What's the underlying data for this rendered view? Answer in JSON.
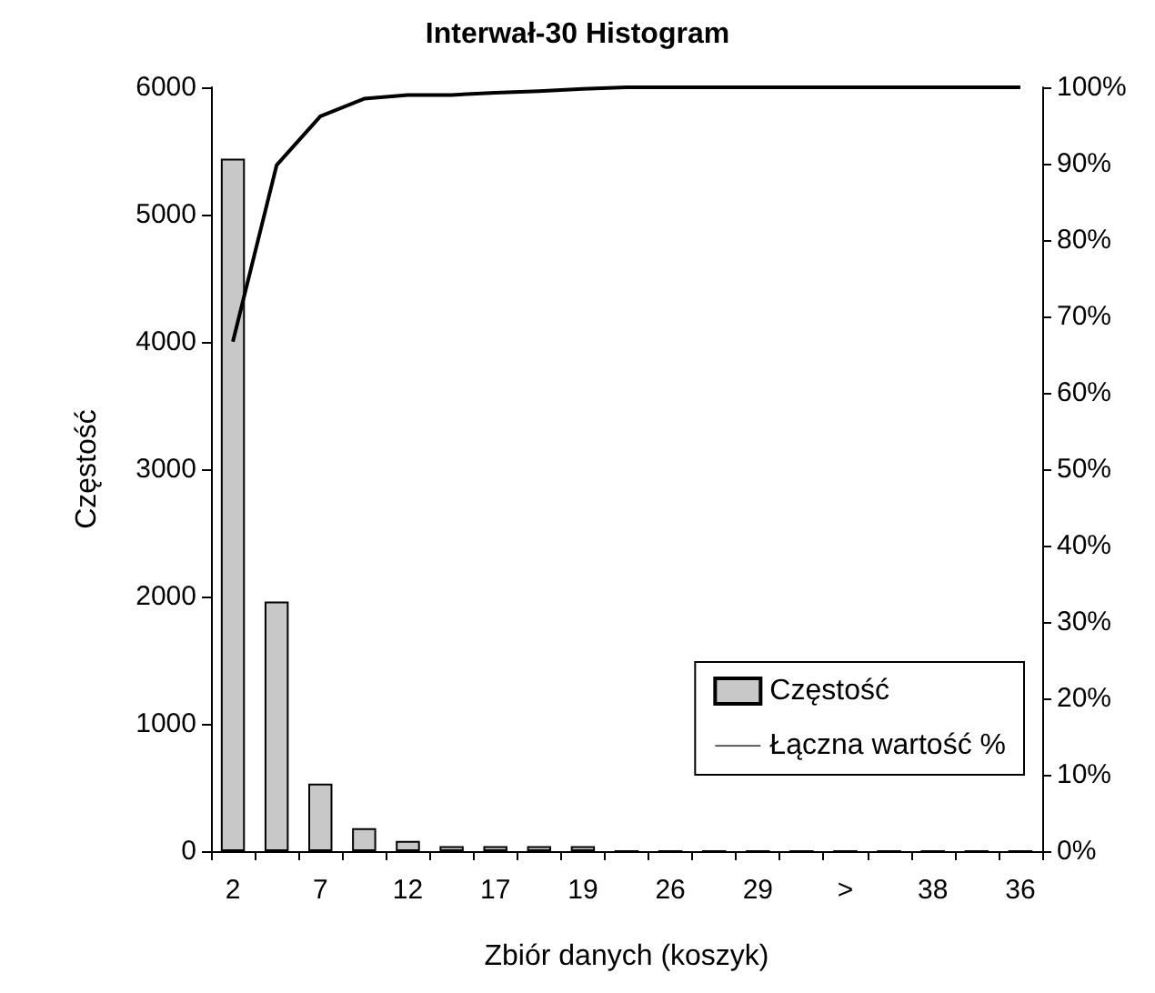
{
  "chart_data": {
    "type": "bar",
    "title": "Interwał-30 Histogram",
    "xlabel": "Zbiór danych (koszyk)",
    "ylabel": "Częstość",
    "categories": [
      "2",
      null,
      "7",
      null,
      "12",
      null,
      "17",
      null,
      "19",
      null,
      "26",
      null,
      "29",
      null,
      ">",
      null,
      "38",
      null,
      "36"
    ],
    "series": [
      {
        "name": "Częstość",
        "color": "#c8c8c8",
        "values": [
          5440,
          1960,
          530,
          180,
          80,
          40,
          40,
          40,
          40,
          0,
          0,
          0,
          0,
          0,
          0,
          0,
          0,
          0,
          0
        ]
      },
      {
        "name": "Łączna wartość %",
        "type": "line",
        "axis": "y2",
        "color": "#000000",
        "values": [
          66.7,
          89.8,
          96.2,
          98.5,
          99.0,
          99.0,
          99.3,
          99.5,
          99.8,
          100,
          100,
          100,
          100,
          100,
          100,
          100,
          100,
          100,
          100
        ]
      }
    ],
    "ylim": [
      0,
      6000
    ],
    "yticks": [
      0,
      1000,
      2000,
      3000,
      4000,
      5000,
      6000
    ],
    "y2lim": [
      0,
      100
    ],
    "y2ticks": [
      {
        "value": 0,
        "label": "0%"
      },
      {
        "value": 10,
        "label": "10%"
      },
      {
        "value": 20,
        "label": "20%"
      },
      {
        "value": 30,
        "label": "30%"
      },
      {
        "value": 40,
        "label": "40%"
      },
      {
        "value": 50,
        "label": "50%"
      },
      {
        "value": 60,
        "label": "60%"
      },
      {
        "value": 70,
        "label": "70%"
      },
      {
        "value": 80,
        "label": "80%"
      },
      {
        "value": 90,
        "label": "90%"
      },
      {
        "value": 100,
        "label": "100%"
      }
    ],
    "grid": false,
    "legend": "bottom right",
    "marker": "none",
    "line_style": "solid"
  }
}
